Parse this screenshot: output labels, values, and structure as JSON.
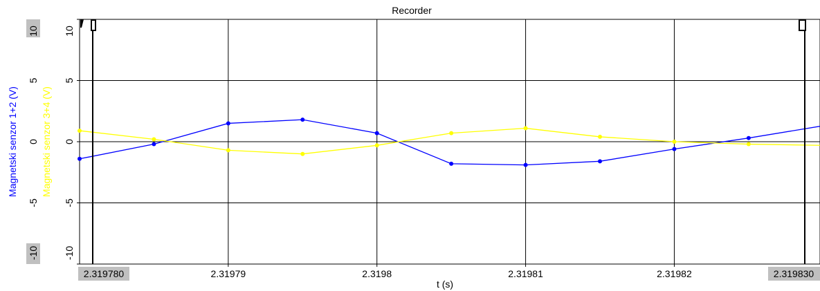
{
  "chart_data": {
    "type": "line",
    "title": "Recorder",
    "xlabel": "t (s)",
    "xlim": [
      2.31978,
      2.3198298
    ],
    "x_tick_values": [
      2.31979,
      2.3198,
      2.31981,
      2.31982
    ],
    "x_tick_labels": [
      "2.31979",
      "2.3198",
      "2.31981",
      "2.31982"
    ],
    "x_range_labels": {
      "start": "2.319780",
      "end": "2.319830"
    },
    "ylim": [
      -10,
      10
    ],
    "y_tick_values": [
      10,
      5,
      0,
      -5,
      -10
    ],
    "y_tick_labels": [
      "10",
      "5",
      "0",
      "-5",
      "-10"
    ],
    "grid": true,
    "series": [
      {
        "name": "Magnetski senzor 1+2 (V)",
        "color": "#0000ff",
        "x": [
          2.31978,
          2.319785,
          2.31979,
          2.319795,
          2.3198,
          2.319805,
          2.31981,
          2.319815,
          2.31982,
          2.319825,
          2.31983
        ],
        "y": [
          -1.4,
          -0.2,
          1.5,
          1.8,
          0.7,
          -1.8,
          -1.9,
          -1.6,
          -0.6,
          0.3,
          1.3
        ]
      },
      {
        "name": "Magnetski senzor 3+4 (V)",
        "color": "#ffff00",
        "x": [
          2.31978,
          2.319785,
          2.31979,
          2.319795,
          2.3198,
          2.319805,
          2.31981,
          2.319815,
          2.31982,
          2.319825,
          2.31983
        ],
        "y": [
          0.9,
          0.2,
          -0.7,
          -1.0,
          -0.3,
          0.7,
          1.1,
          0.4,
          0.0,
          -0.2,
          -0.3
        ]
      }
    ]
  }
}
